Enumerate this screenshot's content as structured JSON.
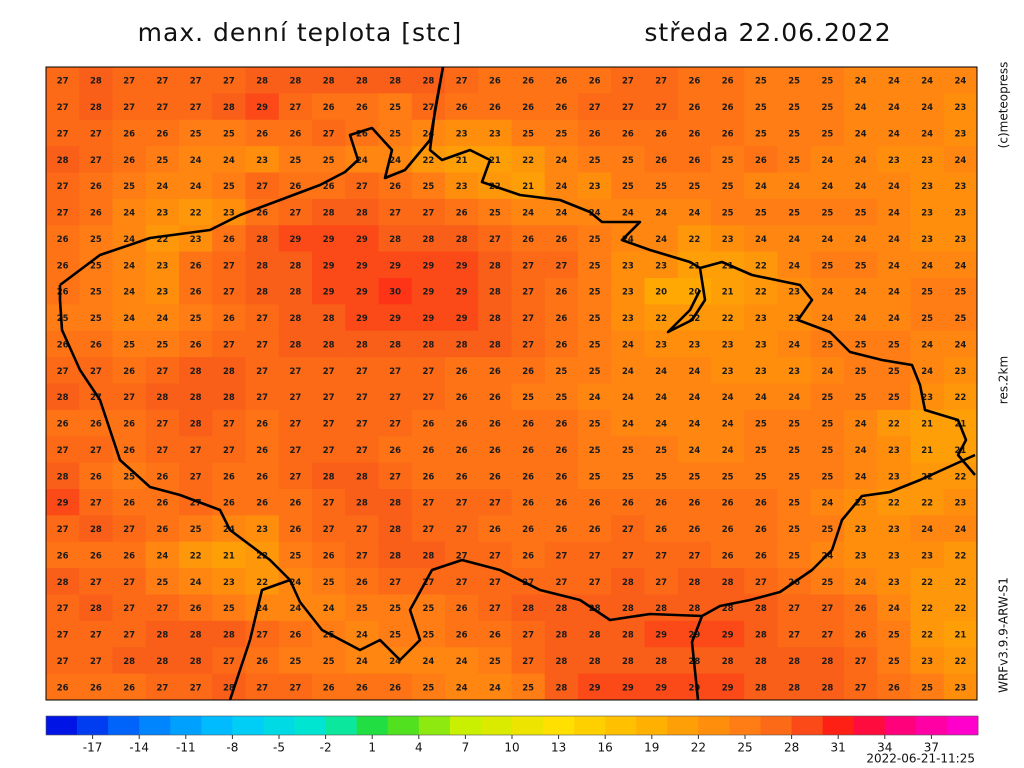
{
  "header": {
    "title": "max. denní teplota [stc]",
    "date": "středa 22.06.2022"
  },
  "side_labels": {
    "copyright": "(c)meteopress",
    "resolution": "res.2km",
    "model": "WRFv3.9.9-ARW-S1"
  },
  "grid": {
    "rows": [
      [
        27,
        28,
        27,
        27,
        27,
        27,
        28,
        28,
        28,
        28,
        28,
        28,
        27,
        26,
        26,
        26,
        26,
        27,
        27,
        26,
        26,
        25,
        25,
        25,
        24,
        24,
        24,
        24
      ],
      [
        27,
        28,
        27,
        27,
        27,
        28,
        29,
        27,
        26,
        26,
        25,
        27,
        26,
        26,
        26,
        26,
        27,
        27,
        27,
        26,
        26,
        25,
        25,
        25,
        24,
        24,
        24,
        23
      ],
      [
        27,
        27,
        26,
        26,
        25,
        25,
        26,
        26,
        27,
        26,
        25,
        24,
        23,
        23,
        25,
        25,
        26,
        26,
        26,
        26,
        26,
        25,
        25,
        25,
        24,
        24,
        24,
        23
      ],
      [
        28,
        27,
        26,
        25,
        24,
        24,
        23,
        25,
        25,
        24,
        24,
        22,
        21,
        21,
        22,
        24,
        25,
        25,
        26,
        26,
        25,
        26,
        25,
        24,
        24,
        23,
        23,
        24
      ],
      [
        27,
        26,
        25,
        24,
        24,
        25,
        27,
        26,
        26,
        27,
        26,
        25,
        23,
        22,
        21,
        24,
        23,
        25,
        25,
        25,
        25,
        24,
        24,
        24,
        24,
        24,
        23,
        23
      ],
      [
        27,
        26,
        24,
        23,
        22,
        23,
        26,
        27,
        28,
        28,
        27,
        27,
        26,
        25,
        24,
        24,
        24,
        24,
        24,
        24,
        25,
        25,
        25,
        25,
        25,
        24,
        23,
        23
      ],
      [
        26,
        25,
        24,
        22,
        23,
        26,
        28,
        29,
        29,
        29,
        28,
        28,
        28,
        27,
        26,
        26,
        25,
        24,
        24,
        22,
        23,
        24,
        24,
        24,
        24,
        24,
        23,
        23
      ],
      [
        26,
        25,
        24,
        23,
        26,
        27,
        28,
        28,
        29,
        29,
        29,
        29,
        29,
        28,
        27,
        27,
        25,
        23,
        23,
        21,
        21,
        22,
        24,
        25,
        25,
        24,
        24,
        24
      ],
      [
        26,
        25,
        24,
        23,
        26,
        27,
        28,
        28,
        29,
        29,
        30,
        29,
        29,
        28,
        27,
        26,
        25,
        23,
        20,
        20,
        21,
        22,
        23,
        24,
        24,
        24,
        25,
        25
      ],
      [
        25,
        25,
        24,
        24,
        25,
        26,
        27,
        28,
        28,
        29,
        29,
        29,
        29,
        28,
        27,
        26,
        25,
        23,
        22,
        22,
        22,
        23,
        23,
        24,
        24,
        24,
        25,
        25
      ],
      [
        26,
        26,
        25,
        25,
        26,
        27,
        27,
        28,
        28,
        28,
        28,
        28,
        28,
        28,
        27,
        26,
        25,
        24,
        23,
        23,
        23,
        23,
        24,
        25,
        25,
        25,
        24,
        24
      ],
      [
        27,
        27,
        26,
        27,
        28,
        28,
        27,
        27,
        27,
        27,
        27,
        27,
        26,
        26,
        26,
        25,
        25,
        24,
        24,
        24,
        23,
        23,
        23,
        24,
        25,
        25,
        24,
        23
      ],
      [
        28,
        27,
        27,
        28,
        28,
        28,
        27,
        27,
        27,
        27,
        27,
        27,
        26,
        26,
        25,
        25,
        24,
        24,
        24,
        24,
        24,
        24,
        24,
        25,
        25,
        25,
        23,
        22
      ],
      [
        26,
        26,
        26,
        27,
        28,
        27,
        26,
        27,
        27,
        27,
        27,
        26,
        26,
        26,
        26,
        26,
        25,
        24,
        24,
        24,
        24,
        25,
        25,
        25,
        24,
        22,
        21,
        21
      ],
      [
        27,
        27,
        26,
        27,
        27,
        27,
        26,
        27,
        27,
        27,
        26,
        26,
        26,
        26,
        26,
        26,
        25,
        25,
        25,
        24,
        24,
        25,
        25,
        25,
        24,
        23,
        21,
        21
      ],
      [
        28,
        26,
        25,
        26,
        27,
        26,
        26,
        27,
        28,
        28,
        27,
        26,
        26,
        26,
        26,
        26,
        25,
        25,
        25,
        25,
        25,
        25,
        25,
        25,
        24,
        23,
        22,
        22
      ],
      [
        29,
        27,
        26,
        26,
        27,
        26,
        26,
        26,
        27,
        28,
        28,
        27,
        27,
        27,
        26,
        26,
        26,
        26,
        26,
        26,
        26,
        26,
        25,
        24,
        23,
        22,
        22,
        23
      ],
      [
        27,
        28,
        27,
        26,
        25,
        24,
        23,
        26,
        27,
        27,
        28,
        27,
        27,
        26,
        26,
        26,
        26,
        27,
        26,
        26,
        26,
        26,
        25,
        25,
        23,
        23,
        24,
        24
      ],
      [
        26,
        26,
        26,
        24,
        22,
        21,
        22,
        25,
        26,
        27,
        28,
        28,
        27,
        27,
        26,
        27,
        27,
        27,
        27,
        27,
        26,
        26,
        25,
        24,
        23,
        23,
        23,
        22
      ],
      [
        28,
        27,
        27,
        25,
        24,
        23,
        22,
        24,
        25,
        26,
        27,
        27,
        27,
        27,
        27,
        27,
        27,
        28,
        27,
        28,
        28,
        27,
        26,
        25,
        24,
        23,
        22,
        22
      ],
      [
        27,
        28,
        27,
        27,
        26,
        25,
        24,
        24,
        24,
        25,
        25,
        25,
        26,
        27,
        28,
        28,
        28,
        28,
        28,
        28,
        28,
        28,
        27,
        27,
        26,
        24,
        22,
        22
      ],
      [
        27,
        27,
        27,
        28,
        28,
        28,
        27,
        26,
        25,
        24,
        25,
        25,
        26,
        26,
        27,
        28,
        28,
        28,
        29,
        29,
        29,
        28,
        27,
        27,
        26,
        25,
        22,
        21
      ],
      [
        27,
        27,
        28,
        28,
        28,
        27,
        26,
        25,
        25,
        24,
        24,
        24,
        24,
        25,
        27,
        28,
        28,
        28,
        28,
        28,
        28,
        28,
        28,
        28,
        27,
        25,
        23,
        22
      ],
      [
        26,
        26,
        26,
        27,
        27,
        28,
        27,
        27,
        26,
        26,
        26,
        25,
        24,
        24,
        25,
        28,
        29,
        29,
        29,
        29,
        29,
        28,
        28,
        28,
        27,
        26,
        25,
        23
      ]
    ]
  },
  "colorbar": {
    "lim": [
      -20,
      40
    ],
    "ticks": [
      -17,
      -14,
      -11,
      -8,
      -5,
      -2,
      1,
      4,
      7,
      10,
      13,
      16,
      19,
      22,
      25,
      28,
      31,
      34,
      37
    ]
  },
  "timestamp": "2022-06-21-11:25"
}
